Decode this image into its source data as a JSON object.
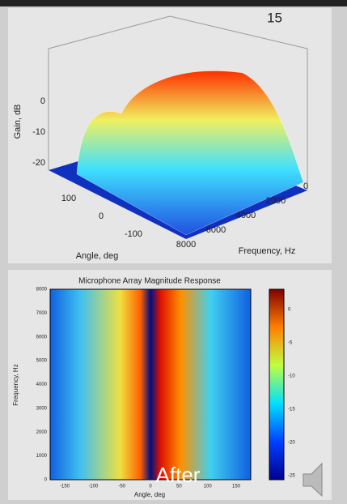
{
  "slide_number": "15",
  "surface_plot": {
    "z_label": "Gain, dB",
    "z_ticks": [
      "0",
      "-10",
      "-20"
    ],
    "angle_ticks": [
      "100",
      "0",
      "-100"
    ],
    "angle_label": "Angle, deg",
    "frequency_ticks": [
      "0",
      "2000",
      "4000",
      "6000",
      "8000"
    ],
    "frequency_label": "Frequency, Hz"
  },
  "heatmap": {
    "title": "Microphone Array Magnitude Response",
    "y_ticks": [
      "0",
      "1000",
      "2000",
      "3000",
      "4000",
      "5000",
      "6000",
      "7000",
      "8000"
    ],
    "y_label": "Frequency, Hz",
    "x_ticks": [
      "-150",
      "-100",
      "-50",
      "0",
      "50",
      "100",
      "150"
    ],
    "x_label": "Angle, deg",
    "colorbar_ticks": [
      "0",
      "-5",
      "-10",
      "-15",
      "-20",
      "-25"
    ]
  },
  "caption": "After"
}
